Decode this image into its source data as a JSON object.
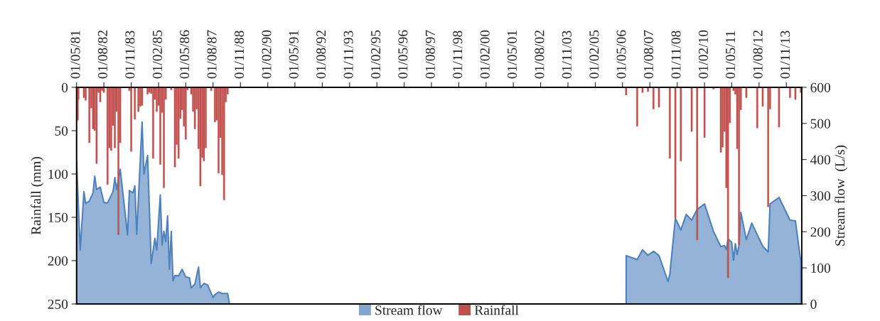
{
  "chart_data": {
    "type": "bar",
    "ylabel": "Rainfall (mm)",
    "y2label": "Stream flow  (L/s)",
    "xlim": [
      "1981-05-01",
      "2014-07-15"
    ],
    "xticks": [
      {
        "value": "1981-05-01",
        "label": "01/05/81"
      },
      {
        "value": "1982-08-01",
        "label": "01/08/82"
      },
      {
        "value": "1983-11-01",
        "label": "01/11/83"
      },
      {
        "value": "1985-02-01",
        "label": "01/02/85"
      },
      {
        "value": "1986-05-01",
        "label": "01/05/86"
      },
      {
        "value": "1987-08-01",
        "label": "01/08/87"
      },
      {
        "value": "1988-11-01",
        "label": "01/11/88"
      },
      {
        "value": "1990-02-01",
        "label": "01/02/90"
      },
      {
        "value": "1991-05-01",
        "label": "01/05/91"
      },
      {
        "value": "1992-08-01",
        "label": "01/08/92"
      },
      {
        "value": "1993-11-01",
        "label": "01/11/93"
      },
      {
        "value": "1995-02-01",
        "label": "01/02/95"
      },
      {
        "value": "1996-05-01",
        "label": "01/05/96"
      },
      {
        "value": "1997-08-01",
        "label": "01/08/97"
      },
      {
        "value": "1998-11-01",
        "label": "01/11/98"
      },
      {
        "value": "2000-02-01",
        "label": "01/02/00"
      },
      {
        "value": "2001-05-01",
        "label": "01/05/01"
      },
      {
        "value": "2002-08-01",
        "label": "01/08/02"
      },
      {
        "value": "2003-11-01",
        "label": "01/11/03"
      },
      {
        "value": "2005-02-01",
        "label": "01/02/05"
      },
      {
        "value": "2006-05-01",
        "label": "01/05/06"
      },
      {
        "value": "2007-08-01",
        "label": "01/08/07"
      },
      {
        "value": "2008-11-01",
        "label": "01/11/08"
      },
      {
        "value": "2010-02-01",
        "label": "01/02/10"
      },
      {
        "value": "2011-05-01",
        "label": "01/05/11"
      },
      {
        "value": "2012-08-01",
        "label": "01/08/12"
      },
      {
        "value": "2013-11-01",
        "label": "01/11/13"
      }
    ],
    "ylim": [
      250,
      0
    ],
    "yticks": [
      0,
      50,
      100,
      150,
      200,
      250
    ],
    "y2lim": [
      0,
      600
    ],
    "y2ticks": [
      0,
      100,
      200,
      300,
      400,
      500,
      600
    ],
    "legend": "bottom",
    "series": [
      {
        "name": "Stream flow",
        "type": "area",
        "axis": "y2",
        "color": "#4f81bd",
        "x": [
          "1981-05-01",
          "1981-07-01",
          "1981-09-01",
          "1981-10-01",
          "1981-12-01",
          "1982-02-01",
          "1982-03-01",
          "1982-04-01",
          "1982-06-01",
          "1982-08-01",
          "1982-10-01",
          "1983-01-01",
          "1983-02-01",
          "1983-03-01",
          "1983-05-01",
          "1983-09-01",
          "1983-10-01",
          "1983-12-01",
          "1984-01-01",
          "1984-02-01",
          "1984-05-01",
          "1984-06-01",
          "1984-08-01",
          "1984-10-01",
          "1984-12-01",
          "1985-01-01",
          "1985-03-01",
          "1985-04-01",
          "1985-05-01",
          "1985-06-01",
          "1985-07-01",
          "1985-08-01",
          "1985-09-01",
          "1985-10-01",
          "1985-11-01",
          "1986-01-01",
          "1986-03-01",
          "1986-05-01",
          "1986-07-01",
          "1986-08-01",
          "1986-10-01",
          "1986-12-01",
          "1987-01-01",
          "1987-03-01",
          "1987-05-01",
          "1987-08-01",
          "1987-09-01",
          "1987-11-01",
          "1988-01-01",
          "1988-04-01",
          "1988-05-01",
          "2006-07-01",
          "2006-07-02",
          "2007-01-01",
          "2007-04-01",
          "2007-07-01",
          "2007-10-01",
          "2008-01-01",
          "2008-06-01",
          "2008-07-01",
          "2008-10-01",
          "2009-01-01",
          "2009-04-01",
          "2009-07-01",
          "2009-10-01",
          "2010-02-01",
          "2010-07-01",
          "2010-11-01",
          "2011-01-01",
          "2011-02-01",
          "2011-03-01",
          "2011-05-01",
          "2011-06-01",
          "2011-07-01",
          "2011-08-01",
          "2011-09-01",
          "2011-10-01",
          "2012-01-01",
          "2012-04-01",
          "2012-10-01",
          "2013-01-01",
          "2013-02-01",
          "2013-07-01",
          "2014-01-01",
          "2014-04-01",
          "2014-07-01",
          "2014-07-02"
        ],
        "values": [
          396,
          149,
          311,
          278,
          285,
          308,
          354,
          317,
          324,
          281,
          280,
          311,
          350,
          317,
          373,
          191,
          314,
          308,
          327,
          193,
          504,
          360,
          411,
          112,
          182,
          149,
          302,
          163,
          201,
          173,
          244,
          96,
          201,
          64,
          79,
          78,
          96,
          75,
          73,
          45,
          55,
          102,
          45,
          57,
          53,
          18,
          26,
          33,
          29,
          29,
          0,
          0,
          134,
          123,
          150,
          135,
          146,
          134,
          62,
          83,
          237,
          205,
          248,
          232,
          262,
          277,
          201,
          159,
          162,
          151,
          180,
          171,
          121,
          167,
          137,
          163,
          254,
          178,
          224,
          160,
          144,
          277,
          295,
          232,
          230,
          117,
          0
        ]
      },
      {
        "name": "Rainfall",
        "color": "#c0504d",
        "x": [
          "1981-05-20",
          "1981-06",
          "1981-09",
          "1981-10",
          "1981-12",
          "1982-01",
          "1982-02",
          "1982-03",
          "1982-04",
          "1982-05",
          "1982-06",
          "1982-07",
          "1982-08",
          "1982-10",
          "1982-11",
          "1982-12",
          "1983-01",
          "1983-02",
          "1983-03",
          "1983-04",
          "1983-05",
          "1983-10",
          "1983-11",
          "1984-01",
          "1984-03",
          "1984-04",
          "1984-05",
          "1984-08",
          "1984-09",
          "1984-10",
          "1984-11",
          "1984-12",
          "1985-01",
          "1985-02",
          "1985-03",
          "1985-04",
          "1985-05",
          "1985-06",
          "1985-09",
          "1985-11",
          "1985-12",
          "1986-01",
          "1986-02",
          "1986-03",
          "1986-04",
          "1986-05",
          "1986-06",
          "1986-08",
          "1986-09",
          "1986-10",
          "1986-11",
          "1986-12",
          "1987-01",
          "1987-02",
          "1987-03",
          "1987-04",
          "1987-07",
          "1987-09",
          "1987-10",
          "1987-11",
          "1987-12",
          "1988-01",
          "1988-02",
          "1988-03",
          "1988-04",
          "2006-07",
          "2007-01",
          "2007-04",
          "2007-07",
          "2007-10",
          "2008-01",
          "2008-07",
          "2008-10",
          "2009-01",
          "2009-07",
          "2009-10",
          "2010-02",
          "2010-07",
          "2010-11",
          "2010-12",
          "2011-01",
          "2011-02",
          "2011-03",
          "2011-04",
          "2011-06",
          "2011-07",
          "2011-08",
          "2011-09",
          "2011-10",
          "2012-01",
          "2012-07",
          "2012-10",
          "2013-01",
          "2013-02",
          "2013-07",
          "2014-01",
          "2014-04",
          "2014-07"
        ],
        "values": [
          38,
          14,
          12,
          15,
          64,
          24,
          48,
          50,
          88,
          6,
          17,
          4,
          6,
          112,
          70,
          73,
          44,
          70,
          28,
          170,
          64,
          4,
          74,
          37,
          28,
          22,
          21,
          8,
          6,
          7,
          82,
          14,
          28,
          21,
          89,
          29,
          116,
          14,
          3,
          92,
          66,
          82,
          36,
          26,
          45,
          60,
          3,
          8,
          28,
          48,
          25,
          71,
          114,
          81,
          85,
          70,
          4,
          40,
          38,
          99,
          58,
          101,
          130,
          17,
          8,
          9,
          45,
          6,
          5,
          25,
          23,
          82,
          151,
          85,
          51,
          176,
          58,
          2,
          75,
          69,
          51,
          116,
          220,
          41,
          4,
          8,
          71,
          182,
          26,
          12,
          47,
          22,
          138,
          25,
          46,
          12,
          14,
          6
        ]
      }
    ]
  }
}
